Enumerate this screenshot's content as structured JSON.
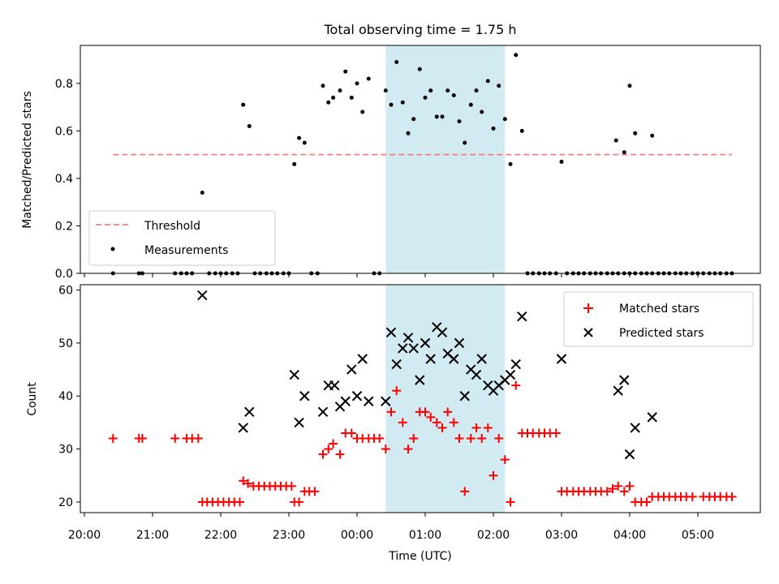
{
  "title": "Total observing time = 1.75 h",
  "colors": {
    "matched": "#ff0000",
    "predicted": "#000000",
    "threshold": "#f08080",
    "band": "#add8e6"
  },
  "chart_data": [
    {
      "type": "scatter",
      "ylabel": "Matched/Predicted stars",
      "xlim": [
        20.0,
        30.0
      ],
      "ylim": [
        0.0,
        0.96
      ],
      "yticks": [
        0.0,
        0.2,
        0.4,
        0.6,
        0.8
      ],
      "shaded_band": [
        24.42,
        26.17
      ],
      "threshold": {
        "name": "Threshold",
        "value": 0.5,
        "x": [
          20.42,
          29.5
        ]
      },
      "legend": {
        "position": "lower-left"
      },
      "series": [
        {
          "name": "Measurements",
          "points": [
            [
              20.42,
              0.0
            ],
            [
              20.8,
              0.0
            ],
            [
              20.85,
              0.0
            ],
            [
              21.33,
              0.0
            ],
            [
              21.42,
              0.0
            ],
            [
              21.5,
              0.0
            ],
            [
              21.58,
              0.0
            ],
            [
              21.73,
              0.34
            ],
            [
              21.83,
              0.0
            ],
            [
              21.92,
              0.0
            ],
            [
              22.0,
              0.0
            ],
            [
              22.08,
              0.0
            ],
            [
              22.17,
              0.0
            ],
            [
              22.25,
              0.0
            ],
            [
              22.33,
              0.71
            ],
            [
              22.42,
              0.62
            ],
            [
              22.5,
              0.0
            ],
            [
              22.58,
              0.0
            ],
            [
              22.67,
              0.0
            ],
            [
              22.75,
              0.0
            ],
            [
              22.83,
              0.0
            ],
            [
              22.92,
              0.0
            ],
            [
              23.0,
              0.0
            ],
            [
              23.08,
              0.46
            ],
            [
              23.15,
              0.57
            ],
            [
              23.23,
              0.55
            ],
            [
              23.33,
              0.0
            ],
            [
              23.42,
              0.0
            ],
            [
              23.5,
              0.79
            ],
            [
              23.58,
              0.72
            ],
            [
              23.65,
              0.74
            ],
            [
              23.75,
              0.77
            ],
            [
              23.83,
              0.85
            ],
            [
              23.92,
              0.74
            ],
            [
              24.0,
              0.8
            ],
            [
              24.08,
              0.68
            ],
            [
              24.17,
              0.82
            ],
            [
              24.25,
              0.0
            ],
            [
              24.33,
              0.0
            ],
            [
              24.42,
              0.77
            ],
            [
              24.5,
              0.71
            ],
            [
              24.58,
              0.89
            ],
            [
              24.67,
              0.72
            ],
            [
              24.75,
              0.59
            ],
            [
              24.83,
              0.65
            ],
            [
              24.92,
              0.86
            ],
            [
              25.0,
              0.74
            ],
            [
              25.08,
              0.77
            ],
            [
              25.17,
              0.66
            ],
            [
              25.25,
              0.66
            ],
            [
              25.33,
              0.77
            ],
            [
              25.42,
              0.75
            ],
            [
              25.5,
              0.64
            ],
            [
              25.58,
              0.55
            ],
            [
              25.67,
              0.71
            ],
            [
              25.75,
              0.77
            ],
            [
              25.83,
              0.68
            ],
            [
              25.92,
              0.81
            ],
            [
              26.0,
              0.61
            ],
            [
              26.08,
              0.79
            ],
            [
              26.17,
              0.65
            ],
            [
              26.25,
              0.46
            ],
            [
              26.33,
              0.92
            ],
            [
              26.42,
              0.6
            ],
            [
              26.5,
              0.0
            ],
            [
              26.58,
              0.0
            ],
            [
              26.67,
              0.0
            ],
            [
              26.75,
              0.0
            ],
            [
              26.83,
              0.0
            ],
            [
              26.92,
              0.0
            ],
            [
              27.0,
              0.47
            ],
            [
              27.08,
              0.0
            ],
            [
              27.17,
              0.0
            ],
            [
              27.25,
              0.0
            ],
            [
              27.33,
              0.0
            ],
            [
              27.42,
              0.0
            ],
            [
              27.5,
              0.0
            ],
            [
              27.58,
              0.0
            ],
            [
              27.67,
              0.0
            ],
            [
              27.75,
              0.0
            ],
            [
              27.83,
              0.0
            ],
            [
              27.92,
              0.0
            ],
            [
              28.0,
              0.0
            ],
            [
              28.08,
              0.0
            ],
            [
              28.17,
              0.0
            ],
            [
              28.25,
              0.0
            ],
            [
              28.33,
              0.0
            ],
            [
              28.42,
              0.0
            ],
            [
              28.5,
              0.0
            ],
            [
              28.58,
              0.0
            ],
            [
              28.67,
              0.0
            ],
            [
              28.75,
              0.0
            ],
            [
              28.83,
              0.0
            ],
            [
              28.92,
              0.0
            ],
            [
              29.0,
              0.0
            ],
            [
              29.08,
              0.0
            ],
            [
              29.17,
              0.0
            ],
            [
              29.25,
              0.0
            ],
            [
              29.33,
              0.0
            ],
            [
              29.42,
              0.0
            ],
            [
              29.5,
              0.0
            ],
            [
              27.8,
              0.56
            ],
            [
              27.92,
              0.51
            ],
            [
              28.0,
              0.79
            ],
            [
              28.08,
              0.59
            ],
            [
              28.33,
              0.58
            ]
          ]
        }
      ]
    },
    {
      "type": "scatter",
      "xlabel": "Time (UTC)",
      "ylabel": "Count",
      "xlim": [
        20.0,
        30.0
      ],
      "ylim": [
        18,
        61
      ],
      "yticks": [
        20,
        30,
        40,
        50,
        60
      ],
      "xticks": [
        20,
        21,
        22,
        23,
        24,
        25,
        26,
        27,
        28,
        29
      ],
      "xticklabels": [
        "20:00",
        "21:00",
        "22:00",
        "23:00",
        "00:00",
        "01:00",
        "02:00",
        "03:00",
        "04:00",
        "05:00"
      ],
      "shaded_band": [
        24.42,
        26.17
      ],
      "legend": {
        "position": "upper-right"
      },
      "series": [
        {
          "name": "Matched stars",
          "marker": "+",
          "points": [
            [
              20.42,
              32
            ],
            [
              20.8,
              32
            ],
            [
              20.85,
              32
            ],
            [
              21.33,
              32
            ],
            [
              21.5,
              32
            ],
            [
              21.58,
              32
            ],
            [
              21.67,
              32
            ],
            [
              21.73,
              20
            ],
            [
              21.8,
              20
            ],
            [
              21.88,
              20
            ],
            [
              21.96,
              20
            ],
            [
              22.04,
              20
            ],
            [
              22.12,
              20
            ],
            [
              22.2,
              20
            ],
            [
              22.28,
              20
            ],
            [
              22.33,
              24
            ],
            [
              22.4,
              23.5
            ],
            [
              22.48,
              23
            ],
            [
              22.56,
              23
            ],
            [
              22.64,
              23
            ],
            [
              22.72,
              23
            ],
            [
              22.8,
              23
            ],
            [
              22.88,
              23
            ],
            [
              22.96,
              23
            ],
            [
              23.04,
              23
            ],
            [
              23.08,
              20
            ],
            [
              23.15,
              20
            ],
            [
              23.23,
              22
            ],
            [
              23.3,
              22
            ],
            [
              23.38,
              22
            ],
            [
              23.5,
              29
            ],
            [
              23.58,
              30
            ],
            [
              23.65,
              31
            ],
            [
              23.75,
              29
            ],
            [
              23.83,
              33
            ],
            [
              23.92,
              33
            ],
            [
              24.0,
              32
            ],
            [
              24.08,
              32
            ],
            [
              24.17,
              32
            ],
            [
              24.25,
              32
            ],
            [
              24.33,
              32
            ],
            [
              24.42,
              30
            ],
            [
              24.5,
              37
            ],
            [
              24.58,
              41
            ],
            [
              24.67,
              35
            ],
            [
              24.75,
              30
            ],
            [
              24.83,
              32
            ],
            [
              24.92,
              37
            ],
            [
              25.0,
              37
            ],
            [
              25.08,
              36
            ],
            [
              25.17,
              35
            ],
            [
              25.25,
              34
            ],
            [
              25.33,
              37
            ],
            [
              25.42,
              35
            ],
            [
              25.5,
              32
            ],
            [
              25.58,
              22
            ],
            [
              25.67,
              32
            ],
            [
              25.75,
              34
            ],
            [
              25.83,
              32
            ],
            [
              25.92,
              34
            ],
            [
              26.0,
              25
            ],
            [
              26.08,
              32
            ],
            [
              26.17,
              28
            ],
            [
              26.25,
              20
            ],
            [
              26.33,
              42
            ],
            [
              26.42,
              33
            ],
            [
              26.5,
              33
            ],
            [
              26.58,
              33
            ],
            [
              26.67,
              33
            ],
            [
              26.75,
              33
            ],
            [
              26.83,
              33
            ],
            [
              26.92,
              33
            ],
            [
              27.0,
              22
            ],
            [
              27.08,
              22
            ],
            [
              27.17,
              22
            ],
            [
              27.25,
              22
            ],
            [
              27.33,
              22
            ],
            [
              27.42,
              22
            ],
            [
              27.5,
              22
            ],
            [
              27.58,
              22
            ],
            [
              27.67,
              22
            ],
            [
              27.75,
              22.5
            ],
            [
              27.83,
              23
            ],
            [
              27.92,
              22
            ],
            [
              28.0,
              23
            ],
            [
              28.08,
              20
            ],
            [
              28.17,
              20
            ],
            [
              28.25,
              20
            ],
            [
              28.33,
              21
            ],
            [
              28.42,
              21
            ],
            [
              28.5,
              21
            ],
            [
              28.58,
              21
            ],
            [
              28.67,
              21
            ],
            [
              28.75,
              21
            ],
            [
              28.83,
              21
            ],
            [
              28.92,
              21
            ],
            [
              29.08,
              21
            ],
            [
              29.17,
              21
            ],
            [
              29.25,
              21
            ],
            [
              29.33,
              21
            ],
            [
              29.42,
              21
            ],
            [
              29.5,
              21
            ]
          ]
        },
        {
          "name": "Predicted stars",
          "marker": "x",
          "points": [
            [
              21.73,
              59
            ],
            [
              22.33,
              34
            ],
            [
              22.42,
              37
            ],
            [
              23.08,
              44
            ],
            [
              23.15,
              35
            ],
            [
              23.23,
              40
            ],
            [
              23.5,
              37
            ],
            [
              23.58,
              42
            ],
            [
              23.67,
              42
            ],
            [
              23.75,
              38
            ],
            [
              23.83,
              39
            ],
            [
              23.92,
              45
            ],
            [
              24.0,
              40
            ],
            [
              24.08,
              47
            ],
            [
              24.17,
              39
            ],
            [
              24.42,
              39
            ],
            [
              24.5,
              52
            ],
            [
              24.58,
              46
            ],
            [
              24.67,
              49
            ],
            [
              24.75,
              51
            ],
            [
              24.83,
              49
            ],
            [
              24.92,
              43
            ],
            [
              25.0,
              50
            ],
            [
              25.08,
              47
            ],
            [
              25.17,
              53
            ],
            [
              25.25,
              52
            ],
            [
              25.33,
              48
            ],
            [
              25.42,
              47
            ],
            [
              25.5,
              50
            ],
            [
              25.58,
              40
            ],
            [
              25.67,
              45
            ],
            [
              25.75,
              44
            ],
            [
              25.83,
              47
            ],
            [
              25.92,
              42
            ],
            [
              26.0,
              41
            ],
            [
              26.08,
              42
            ],
            [
              26.17,
              43
            ],
            [
              26.25,
              44
            ],
            [
              26.33,
              46
            ],
            [
              26.42,
              55
            ],
            [
              27.0,
              47
            ],
            [
              27.83,
              41
            ],
            [
              27.92,
              43
            ],
            [
              28.0,
              29
            ],
            [
              28.08,
              34
            ],
            [
              28.33,
              36
            ]
          ]
        }
      ]
    }
  ]
}
